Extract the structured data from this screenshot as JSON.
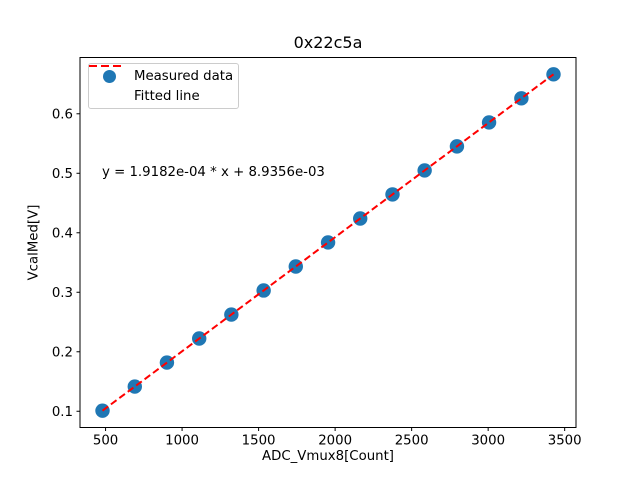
{
  "figure": {
    "background": "#ffffff",
    "frame_color": "#000000"
  },
  "chart_data": {
    "type": "scatter",
    "title": "0x22c5a",
    "xlabel": "ADC_Vmux8[Count]",
    "ylabel": "VcalMed[V]",
    "xlim": [
      333,
      3574
    ],
    "ylim": [
      0.0727,
      0.6946
    ],
    "xticks": [
      500,
      1000,
      1500,
      2000,
      2500,
      3000,
      3500
    ],
    "yticks": [
      0.1,
      0.2,
      0.3,
      0.4,
      0.5,
      0.6
    ],
    "grid": false,
    "annotation": "y = 1.9182e-04 * x + 8.9356e-03",
    "series": [
      {
        "name": "Measured data",
        "type": "scatter",
        "color": "#1f77b4",
        "marker": "circle",
        "x": [
          480,
          691,
          901,
          1112,
          1322,
          1533,
          1743,
          1954,
          2164,
          2375,
          2585,
          2796,
          3006,
          3217,
          3427
        ],
        "y": [
          0.101,
          0.1415,
          0.1818,
          0.2223,
          0.2625,
          0.303,
          0.3433,
          0.3838,
          0.424,
          0.4645,
          0.5048,
          0.5452,
          0.5855,
          0.626,
          0.6663
        ]
      },
      {
        "name": "Fitted line",
        "type": "line",
        "style": "dashed",
        "color": "#ff0000",
        "slope": 0.00019182,
        "intercept": 0.0089356,
        "x_range": [
          480,
          3427
        ]
      }
    ],
    "legend": {
      "position": "upper left",
      "entries": [
        "Measured data",
        "Fitted line"
      ]
    }
  }
}
